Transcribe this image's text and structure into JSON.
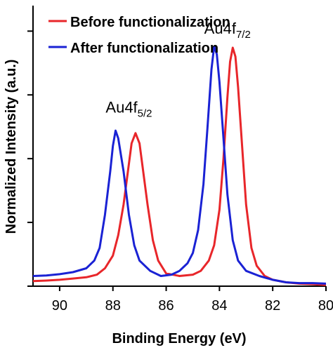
{
  "chart_data": {
    "type": "line",
    "xlabel": "Binding Energy (eV)",
    "ylabel": "Normalized Intensity (a.u.)",
    "xlim": [
      91,
      80
    ],
    "ylim": [
      0,
      1.1
    ],
    "x_reversed": true,
    "xticks": [
      "90",
      "88",
      "86",
      "84",
      "82",
      "80"
    ],
    "xtick_values": [
      90,
      88,
      86,
      84,
      82,
      80
    ],
    "y_ticks_labeled": false,
    "y_tick_values": [
      0.0,
      0.25,
      0.5,
      0.75,
      1.0
    ],
    "grid": false,
    "legend_position": "top-left",
    "series": [
      {
        "name": "Before functionalization",
        "color": "#e8262a",
        "points": [
          [
            91.0,
            0.02
          ],
          [
            90.5,
            0.022
          ],
          [
            90.0,
            0.025
          ],
          [
            89.5,
            0.03
          ],
          [
            89.0,
            0.035
          ],
          [
            88.6,
            0.045
          ],
          [
            88.3,
            0.07
          ],
          [
            88.0,
            0.12
          ],
          [
            87.8,
            0.2
          ],
          [
            87.6,
            0.32
          ],
          [
            87.4,
            0.48
          ],
          [
            87.3,
            0.56
          ],
          [
            87.15,
            0.6
          ],
          [
            87.0,
            0.56
          ],
          [
            86.9,
            0.48
          ],
          [
            86.7,
            0.32
          ],
          [
            86.5,
            0.18
          ],
          [
            86.3,
            0.1
          ],
          [
            86.0,
            0.05
          ],
          [
            85.5,
            0.04
          ],
          [
            85.0,
            0.045
          ],
          [
            84.7,
            0.06
          ],
          [
            84.4,
            0.1
          ],
          [
            84.2,
            0.16
          ],
          [
            84.0,
            0.3
          ],
          [
            83.85,
            0.5
          ],
          [
            83.7,
            0.74
          ],
          [
            83.6,
            0.88
          ],
          [
            83.5,
            0.935
          ],
          [
            83.4,
            0.9
          ],
          [
            83.3,
            0.78
          ],
          [
            83.15,
            0.55
          ],
          [
            83.0,
            0.32
          ],
          [
            82.8,
            0.15
          ],
          [
            82.6,
            0.08
          ],
          [
            82.3,
            0.04
          ],
          [
            82.0,
            0.025
          ],
          [
            81.5,
            0.015
          ],
          [
            81.0,
            0.01
          ],
          [
            80.5,
            0.008
          ],
          [
            80.0,
            0.005
          ]
        ]
      },
      {
        "name": "After functionalization",
        "color": "#1a22d4",
        "points": [
          [
            91.0,
            0.04
          ],
          [
            90.5,
            0.042
          ],
          [
            90.0,
            0.047
          ],
          [
            89.5,
            0.055
          ],
          [
            89.0,
            0.07
          ],
          [
            88.7,
            0.1
          ],
          [
            88.5,
            0.15
          ],
          [
            88.3,
            0.28
          ],
          [
            88.1,
            0.45
          ],
          [
            88.0,
            0.55
          ],
          [
            87.9,
            0.61
          ],
          [
            87.8,
            0.58
          ],
          [
            87.6,
            0.45
          ],
          [
            87.4,
            0.28
          ],
          [
            87.2,
            0.16
          ],
          [
            87.0,
            0.1
          ],
          [
            86.6,
            0.06
          ],
          [
            86.2,
            0.04
          ],
          [
            85.8,
            0.045
          ],
          [
            85.5,
            0.06
          ],
          [
            85.2,
            0.09
          ],
          [
            85.0,
            0.13
          ],
          [
            84.8,
            0.22
          ],
          [
            84.6,
            0.4
          ],
          [
            84.45,
            0.62
          ],
          [
            84.3,
            0.85
          ],
          [
            84.2,
            0.94
          ],
          [
            84.1,
            0.91
          ],
          [
            84.0,
            0.8
          ],
          [
            83.85,
            0.58
          ],
          [
            83.7,
            0.36
          ],
          [
            83.5,
            0.18
          ],
          [
            83.3,
            0.1
          ],
          [
            83.0,
            0.06
          ],
          [
            82.5,
            0.04
          ],
          [
            82.0,
            0.025
          ],
          [
            81.5,
            0.015
          ],
          [
            81.0,
            0.012
          ],
          [
            80.5,
            0.012
          ],
          [
            80.0,
            0.01
          ]
        ]
      }
    ],
    "annotations": [
      {
        "label": "Au4f",
        "sub": "5/2",
        "x": 87.4,
        "y": 0.68
      },
      {
        "label": "Au4f",
        "sub": "7/2",
        "x": 83.7,
        "y": 0.99
      }
    ]
  }
}
